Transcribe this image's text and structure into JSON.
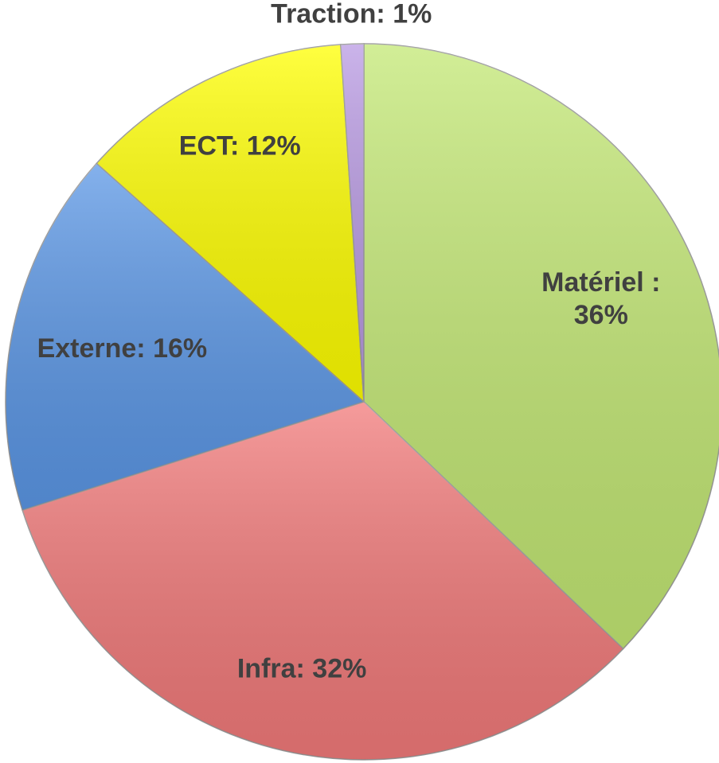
{
  "chart_data": {
    "type": "pie",
    "values": [
      36,
      32,
      16,
      12,
      1
    ],
    "value_labels": [
      "Matériel :\n36%",
      "Infra: 32%",
      "Externe: 16%",
      "ECT: 12%",
      "Traction: 1%"
    ],
    "colors": [
      "#c3e874",
      "#f27a7a",
      "#5b97e6",
      "#ffff00",
      "#b99ae3"
    ]
  }
}
